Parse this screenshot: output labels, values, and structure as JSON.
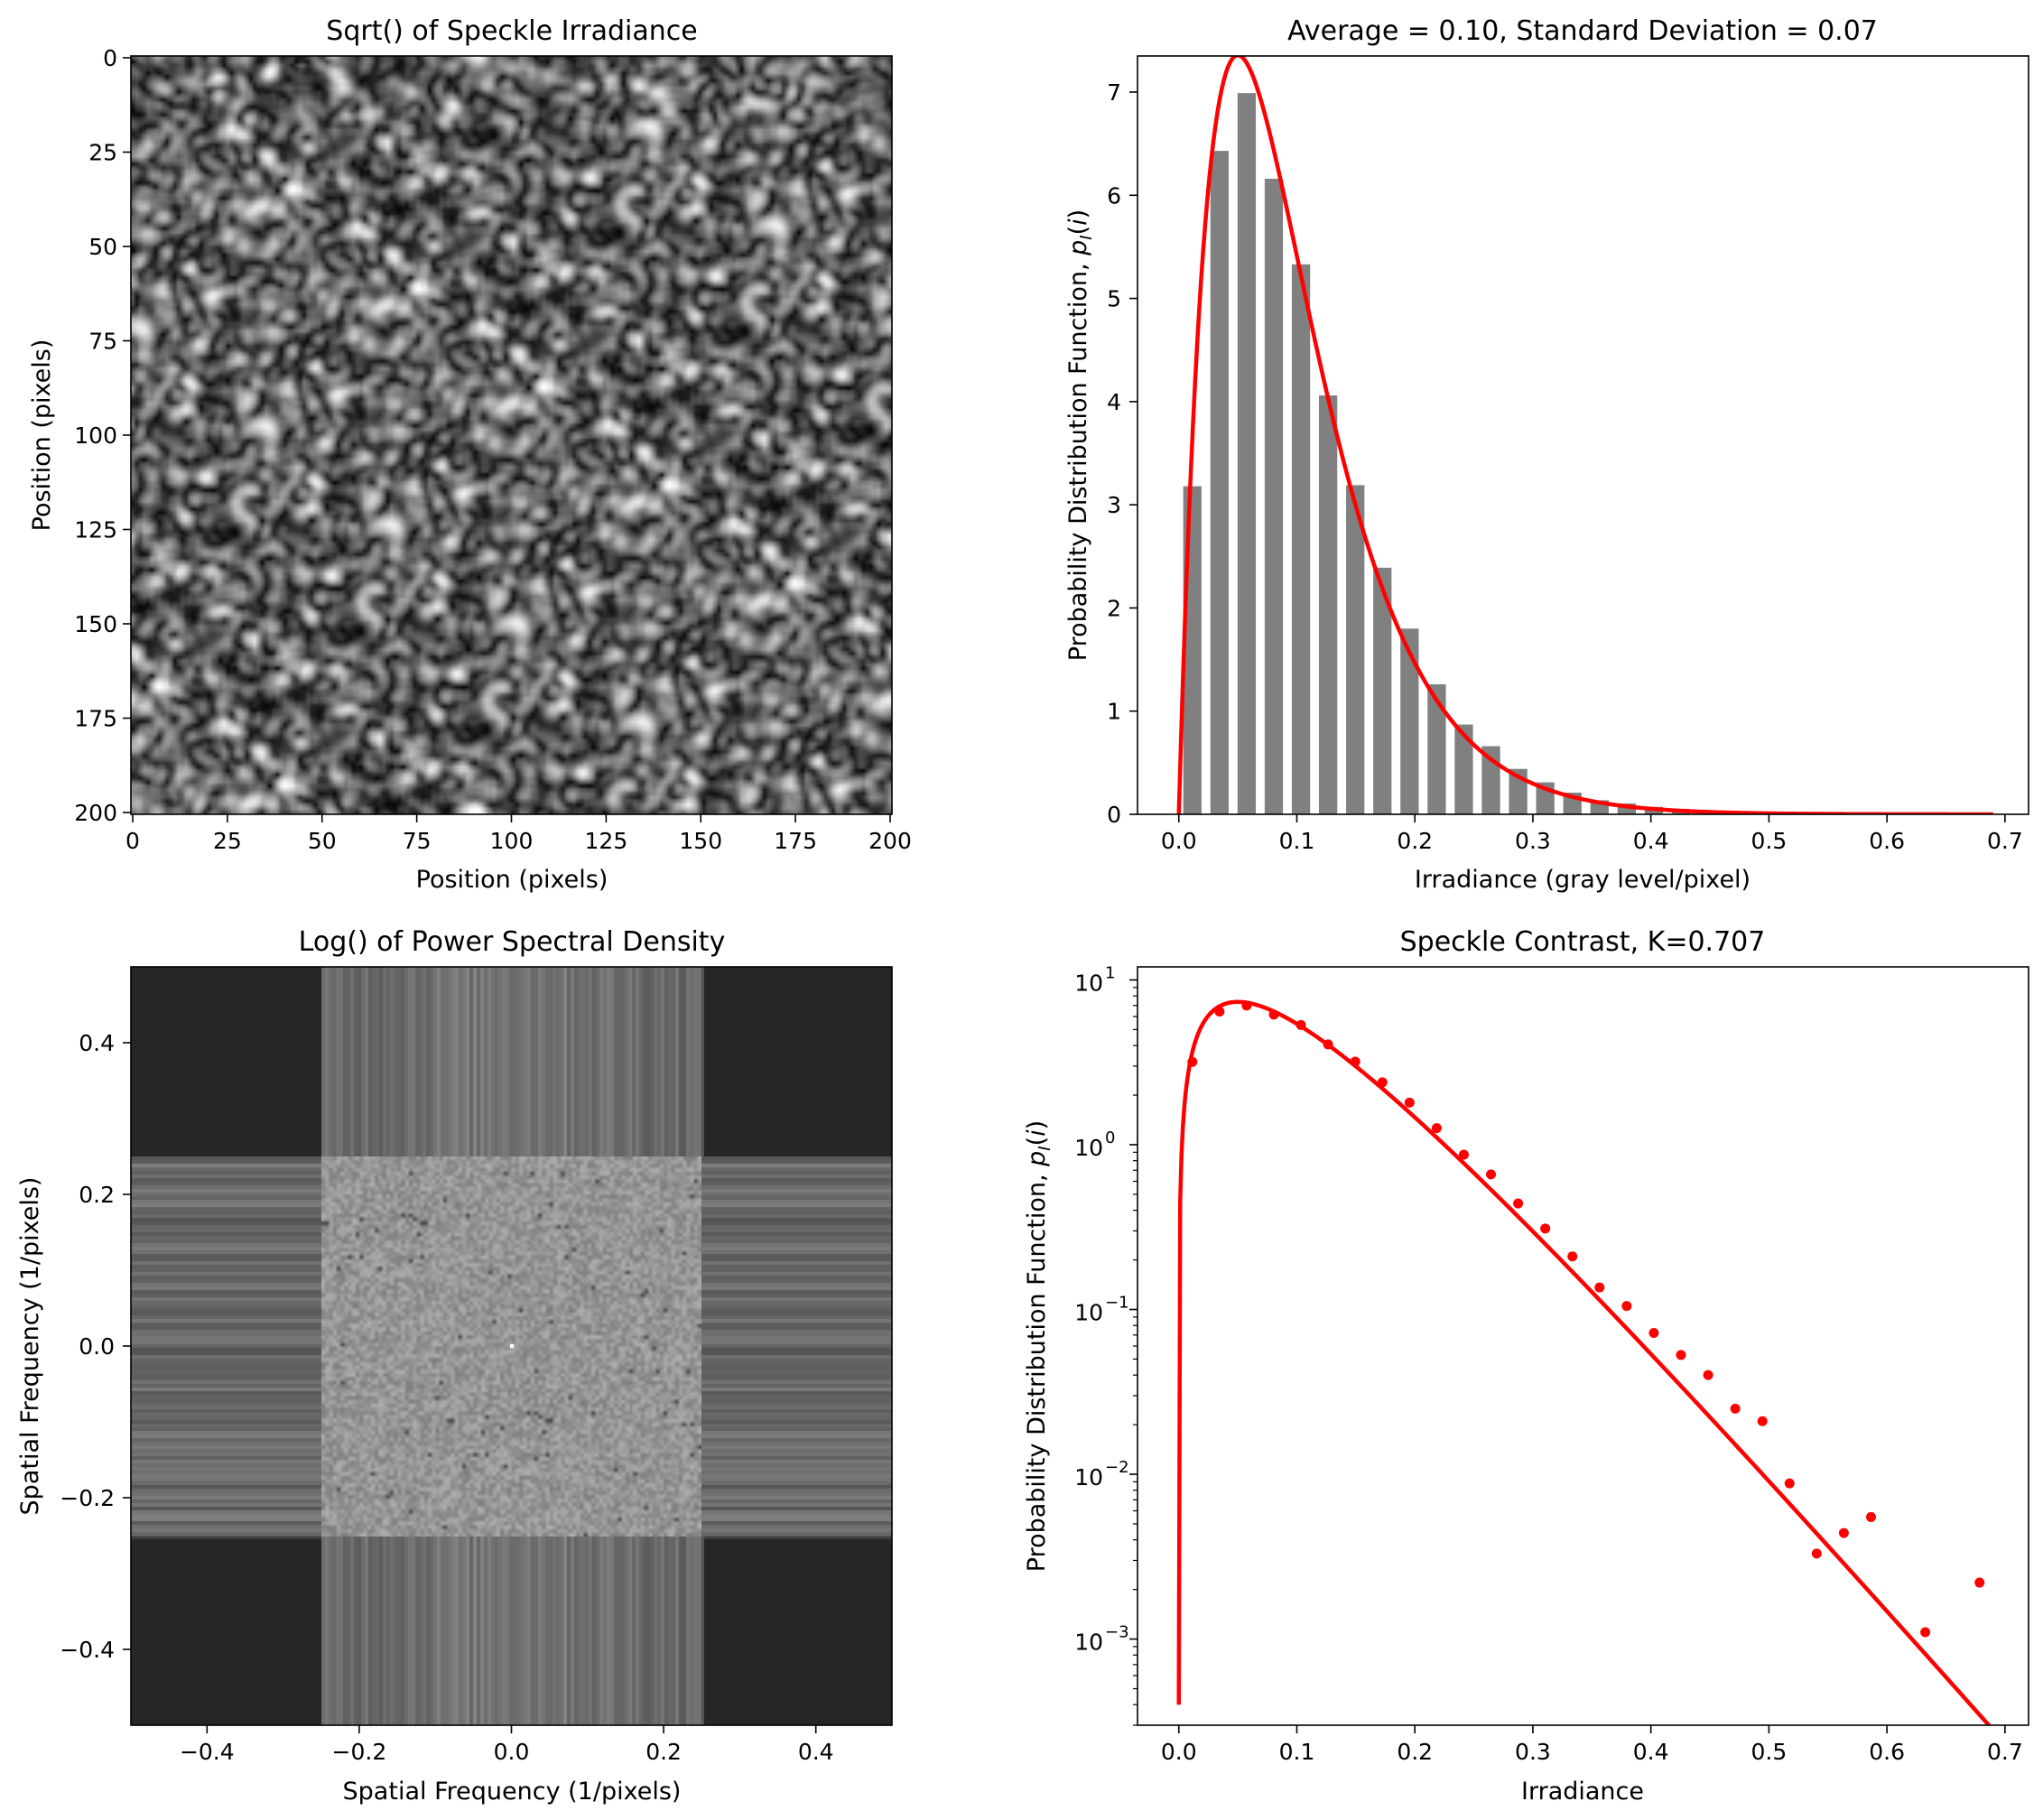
{
  "figure": {
    "background": "#ffffff",
    "accent_color": "#ff0000",
    "bar_color": "#808080"
  },
  "panels": {
    "speckle": {
      "title": "Sqrt() of Speckle Irradiance",
      "xlabel": "Position (pixels)",
      "ylabel": "Position (pixels)",
      "xticks": [
        "0",
        "25",
        "50",
        "75",
        "100",
        "125",
        "150",
        "175",
        "200"
      ],
      "yticks": [
        "0",
        "25",
        "50",
        "75",
        "100",
        "125",
        "150",
        "175",
        "200"
      ],
      "colormap": "gray"
    },
    "histogram": {
      "title": "Average = 0.10, Standard Deviation = 0.07",
      "xlabel": "Irradiance (gray level/pixel)",
      "ylabel_main": "Probability Distribution Function, ",
      "ylabel_sym": "p",
      "ylabel_sub": "I",
      "ylabel_open": "(",
      "ylabel_var": "i",
      "ylabel_close": ")",
      "xticks": [
        "0.0",
        "0.1",
        "0.2",
        "0.3",
        "0.4",
        "0.5",
        "0.6",
        "0.7"
      ],
      "yticks": [
        "0",
        "1",
        "2",
        "3",
        "4",
        "5",
        "6",
        "7"
      ]
    },
    "psd": {
      "title": "Log() of Power Spectral Density",
      "xlabel": "Spatial Frequency (1/pixels)",
      "ylabel": "Spatial Frequency (1/pixels)",
      "xticks": [
        "−0.4",
        "−0.2",
        "0.0",
        "0.2",
        "0.4"
      ],
      "yticks": [
        "0.4",
        "0.2",
        "0.0",
        "−0.2",
        "−0.4"
      ],
      "colormap": "gray"
    },
    "logpdf": {
      "title": "Speckle Contrast, K=0.707",
      "xlabel": "Irradiance",
      "ylabel_main": "Probability Distribution Function, ",
      "ylabel_sym": "p",
      "ylabel_sub": "I",
      "ylabel_open": "(",
      "ylabel_var": "i",
      "ylabel_close": ")",
      "xticks": [
        "0.0",
        "0.1",
        "0.2",
        "0.3",
        "0.4",
        "0.5",
        "0.6",
        "0.7"
      ],
      "yticks_base": [
        "10",
        "10",
        "10",
        "10",
        "10"
      ],
      "yticks_exp": [
        "1",
        "0",
        "−1",
        "−2",
        "−3"
      ]
    }
  },
  "chart_data": [
    {
      "type": "heatmap",
      "title": "Sqrt() of Speckle Irradiance",
      "xlabel": "Position (pixels)",
      "ylabel": "Position (pixels)",
      "xlim": [
        0,
        200
      ],
      "ylim": [
        200,
        0
      ],
      "colormap": "gray"
    },
    {
      "type": "bar",
      "title": "Average = 0.10, Standard Deviation = 0.07",
      "xlabel": "Irradiance (gray level/pixel)",
      "ylabel": "Probability Distribution Function, p_I(i)",
      "xlim": [
        -0.035,
        0.72
      ],
      "ylim": [
        0,
        7.35
      ],
      "bar_color": "#808080",
      "curve_color": "#ff0000",
      "mean": 0.1,
      "std": 0.07,
      "bins": {
        "x": [
          0.0115,
          0.0345,
          0.0575,
          0.0805,
          0.1035,
          0.1265,
          0.1495,
          0.1725,
          0.1955,
          0.2185,
          0.2415,
          0.2645,
          0.2875,
          0.3105,
          0.3335,
          0.3565,
          0.3795,
          0.4025,
          0.4255,
          0.4485,
          0.4715,
          0.4945,
          0.5175,
          0.5405,
          0.5635,
          0.5865,
          0.6095,
          0.6325,
          0.6555,
          0.6785
        ],
        "y": [
          3.18,
          6.43,
          6.99,
          6.16,
          5.33,
          4.06,
          3.19,
          2.39,
          1.8,
          1.26,
          0.87,
          0.66,
          0.44,
          0.31,
          0.21,
          0.136,
          0.105,
          0.072,
          0.053,
          0.04,
          0.025,
          0.021,
          0.0088,
          0.0033,
          0.0044,
          0.0055,
          0,
          0.0011,
          0,
          0.0022
        ]
      },
      "fit_curve": {
        "model": "gamma",
        "shape": 2.0,
        "mean": 0.1,
        "x_range": [
          0.0,
          0.69
        ]
      }
    },
    {
      "type": "heatmap",
      "title": "Log() of Power Spectral Density",
      "xlabel": "Spatial Frequency (1/pixels)",
      "ylabel": "Spatial Frequency (1/pixels)",
      "xlim": [
        -0.5,
        0.5
      ],
      "ylim": [
        -0.5,
        0.5
      ],
      "colormap": "gray"
    },
    {
      "type": "scatter",
      "title": "Speckle Contrast, K=0.707",
      "xlabel": "Irradiance",
      "ylabel": "Probability Distribution Function, p_I(i)",
      "xlim": [
        -0.035,
        0.72
      ],
      "ylim": [
        0.0003,
        12
      ],
      "yscale": "log",
      "color": "#ff0000",
      "points": {
        "x": [
          0.0115,
          0.0345,
          0.0575,
          0.0805,
          0.1035,
          0.1265,
          0.1495,
          0.1725,
          0.1955,
          0.2185,
          0.2415,
          0.2645,
          0.2875,
          0.3105,
          0.3335,
          0.3565,
          0.3795,
          0.4025,
          0.4255,
          0.4485,
          0.4715,
          0.4945,
          0.5175,
          0.5405,
          0.5635,
          0.5865,
          0.6325,
          0.6785
        ],
        "y": [
          3.18,
          6.43,
          6.99,
          6.16,
          5.33,
          4.06,
          3.19,
          2.39,
          1.8,
          1.26,
          0.87,
          0.66,
          0.44,
          0.31,
          0.21,
          0.136,
          0.105,
          0.072,
          0.053,
          0.04,
          0.025,
          0.021,
          0.0088,
          0.0033,
          0.0044,
          0.0055,
          0.0011,
          0.0022
        ]
      },
      "fit_curve": {
        "model": "gamma",
        "shape": 2.0,
        "mean": 0.1,
        "x_range": [
          0.0,
          0.69
        ]
      }
    }
  ]
}
